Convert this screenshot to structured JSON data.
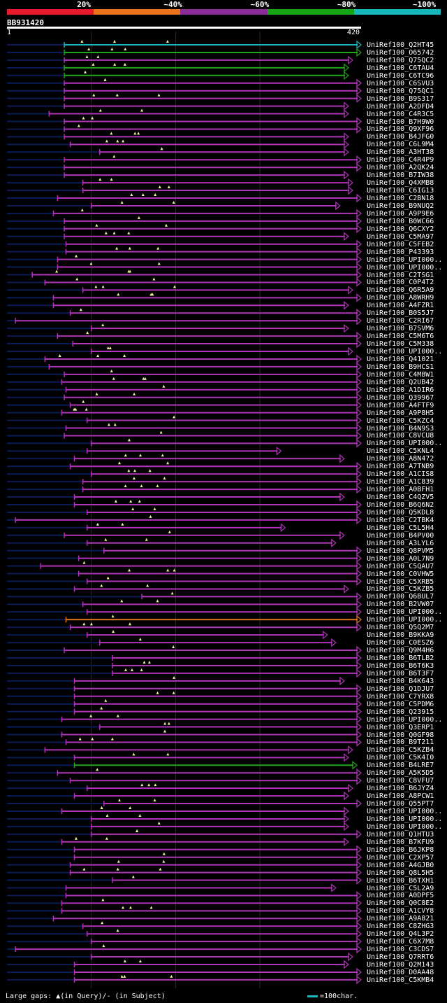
{
  "legend": {
    "labels": [
      "20%",
      "~40%",
      "~60%",
      "~80%",
      "~100%"
    ],
    "colors": [
      "#e8192a",
      "#e8731a",
      "#8d2a9a",
      "#17a417",
      "#16b8bd"
    ]
  },
  "query": {
    "id": "BB931420",
    "start_label": "1",
    "end_label": "420",
    "length": 420
  },
  "colors": {
    "magenta": "#b135b8",
    "green": "#22a51d",
    "cyan": "#16b8bd",
    "orange": "#e07820",
    "navy": "#0c1a55",
    "gap": "#f6f0a0"
  },
  "hits": [
    {
      "label": "UniRef100_Q2HT45",
      "color": "cyan",
      "start": 68,
      "end": 420
    },
    {
      "label": "UniRef100_O65742",
      "color": "green",
      "start": 68,
      "end": 420
    },
    {
      "label": "UniRef100_Q75QC2",
      "color": "magenta",
      "start": 68,
      "end": 410
    },
    {
      "label": "UniRef100_C6TAU4",
      "color": "green",
      "start": 68,
      "end": 405
    },
    {
      "label": "UniRef100_C6TC96",
      "color": "green",
      "start": 68,
      "end": 405
    },
    {
      "label": "UniRef100_C6SVU3",
      "color": "magenta",
      "start": 68,
      "end": 420
    },
    {
      "label": "UniRef100_Q75QC1",
      "color": "magenta",
      "start": 68,
      "end": 420
    },
    {
      "label": "UniRef100_B9S317",
      "color": "magenta",
      "start": 68,
      "end": 420
    },
    {
      "label": "UniRef100_A2DFD4",
      "color": "magenta",
      "start": 68,
      "end": 405
    },
    {
      "label": "UniRef100_C4R3C5",
      "color": "magenta",
      "start": 50,
      "end": 405
    },
    {
      "label": "UniRef100_B7H9W0",
      "color": "magenta",
      "start": 68,
      "end": 420
    },
    {
      "label": "UniRef100_Q9XF96",
      "color": "magenta",
      "start": 68,
      "end": 420
    },
    {
      "label": "UniRef100_B4JFG0",
      "color": "magenta",
      "start": 68,
      "end": 405
    },
    {
      "label": "UniRef100_C6L9M4",
      "color": "magenta",
      "start": 75,
      "end": 405
    },
    {
      "label": "UniRef100_A3HT38",
      "color": "magenta",
      "start": 110,
      "end": 405
    },
    {
      "label": "UniRef100_C4R4P9",
      "color": "magenta",
      "start": 68,
      "end": 420
    },
    {
      "label": "UniRef100_A2QK24",
      "color": "magenta",
      "start": 68,
      "end": 420
    },
    {
      "label": "UniRef100_B7IW38",
      "color": "magenta",
      "start": 68,
      "end": 405
    },
    {
      "label": "UniRef100_Q4XMB8",
      "color": "magenta",
      "start": 90,
      "end": 410
    },
    {
      "label": "UniRef100_C6IG13",
      "color": "magenta",
      "start": 90,
      "end": 410
    },
    {
      "label": "UniRef100_C2BN18",
      "color": "magenta",
      "start": 60,
      "end": 420
    },
    {
      "label": "UniRef100_B9NUQ2",
      "color": "magenta",
      "start": 100,
      "end": 395
    },
    {
      "label": "UniRef100_A9P9E6",
      "color": "magenta",
      "start": 55,
      "end": 420
    },
    {
      "label": "UniRef100_B0WC66",
      "color": "magenta",
      "start": 68,
      "end": 420
    },
    {
      "label": "UniRef100_Q6CXY2",
      "color": "magenta",
      "start": 68,
      "end": 420
    },
    {
      "label": "UniRef100_C5MA97",
      "color": "magenta",
      "start": 68,
      "end": 405
    },
    {
      "label": "UniRef100_C5FEB2",
      "color": "magenta",
      "start": 70,
      "end": 420
    },
    {
      "label": "UniRef100_P43393",
      "color": "magenta",
      "start": 70,
      "end": 420
    },
    {
      "label": "UniRef100_UPI000..",
      "color": "magenta",
      "start": 60,
      "end": 420
    },
    {
      "label": "UniRef100_UPI000..",
      "color": "magenta",
      "start": 60,
      "end": 420
    },
    {
      "label": "UniRef100_C2TSG1",
      "color": "magenta",
      "start": 30,
      "end": 420
    },
    {
      "label": "UniRef100_C0P4T2",
      "color": "magenta",
      "start": 45,
      "end": 420
    },
    {
      "label": "UniRef100_Q6R5A9",
      "color": "magenta",
      "start": 90,
      "end": 410
    },
    {
      "label": "UniRef100_A8WRH9",
      "color": "magenta",
      "start": 55,
      "end": 420
    },
    {
      "label": "UniRef100_A4FZR1",
      "color": "magenta",
      "start": 55,
      "end": 405
    },
    {
      "label": "UniRef100_B0S5J7",
      "color": "magenta",
      "start": 75,
      "end": 420
    },
    {
      "label": "UniRef100_C2RI67",
      "color": "magenta",
      "start": 10,
      "end": 420
    },
    {
      "label": "UniRef100_B7SVM6",
      "color": "magenta",
      "start": 100,
      "end": 405
    },
    {
      "label": "UniRef100_C5M6T6",
      "color": "magenta",
      "start": 60,
      "end": 420
    },
    {
      "label": "UniRef100_C5M338",
      "color": "magenta",
      "start": 78,
      "end": 420
    },
    {
      "label": "UniRef100_UPI000..",
      "color": "magenta",
      "start": 100,
      "end": 410
    },
    {
      "label": "UniRef100_Q41021",
      "color": "magenta",
      "start": 45,
      "end": 420
    },
    {
      "label": "UniRef100_B9HCS1",
      "color": "magenta",
      "start": 50,
      "end": 420
    },
    {
      "label": "UniRef100_C4M8W1",
      "color": "magenta",
      "start": 68,
      "end": 420
    },
    {
      "label": "UniRef100_Q2UB42",
      "color": "magenta",
      "start": 65,
      "end": 420
    },
    {
      "label": "UniRef100_A1DIR6",
      "color": "magenta",
      "start": 70,
      "end": 420
    },
    {
      "label": "UniRef100_Q39967",
      "color": "magenta",
      "start": 68,
      "end": 420
    },
    {
      "label": "UniRef100_A4FTF9",
      "color": "magenta",
      "start": 75,
      "end": 420
    },
    {
      "label": "UniRef100_A9P8H5",
      "color": "magenta",
      "start": 65,
      "end": 420
    },
    {
      "label": "UniRef100_C5KZC4",
      "color": "magenta",
      "start": 95,
      "end": 420
    },
    {
      "label": "UniRef100_B4N9S3",
      "color": "magenta",
      "start": 70,
      "end": 420
    },
    {
      "label": "UniRef100_C8VCU8",
      "color": "magenta",
      "start": 68,
      "end": 420
    },
    {
      "label": "UniRef100_UPI000..",
      "color": "magenta",
      "start": 100,
      "end": 420
    },
    {
      "label": "UniRef100_C5KNL4",
      "color": "magenta",
      "start": 95,
      "end": 325
    },
    {
      "label": "UniRef100_A8N472",
      "color": "magenta",
      "start": 80,
      "end": 400
    },
    {
      "label": "UniRef100_A7TNB9",
      "color": "magenta",
      "start": 75,
      "end": 420
    },
    {
      "label": "UniRef100_A1CIS8",
      "color": "magenta",
      "start": 100,
      "end": 420
    },
    {
      "label": "UniRef100_A1C839",
      "color": "magenta",
      "start": 90,
      "end": 420
    },
    {
      "label": "UniRef100_A0BFH1",
      "color": "magenta",
      "start": 90,
      "end": 420
    },
    {
      "label": "UniRef100_C4QZV5",
      "color": "magenta",
      "start": 80,
      "end": 400
    },
    {
      "label": "UniRef100_B6Q6N2",
      "color": "magenta",
      "start": 80,
      "end": 420
    },
    {
      "label": "UniRef100_Q5KDL8",
      "color": "magenta",
      "start": 95,
      "end": 420
    },
    {
      "label": "UniRef100_C2TBK4",
      "color": "magenta",
      "start": 10,
      "end": 420
    },
    {
      "label": "UniRef100_C5L5H4",
      "color": "magenta",
      "start": 95,
      "end": 330
    },
    {
      "label": "UniRef100_B4PV00",
      "color": "magenta",
      "start": 68,
      "end": 400
    },
    {
      "label": "UniRef100_A3LYL6",
      "color": "magenta",
      "start": 95,
      "end": 390
    },
    {
      "label": "UniRef100_Q8PVM5",
      "color": "magenta",
      "start": 115,
      "end": 420
    },
    {
      "label": "UniRef100_A0L7N9",
      "color": "magenta",
      "start": 85,
      "end": 420
    },
    {
      "label": "UniRef100_C5QAU7",
      "color": "magenta",
      "start": 40,
      "end": 420
    },
    {
      "label": "UniRef100_C0VHW5",
      "color": "magenta",
      "start": 85,
      "end": 420
    },
    {
      "label": "UniRef100_C5XRB5",
      "color": "magenta",
      "start": 95,
      "end": 420
    },
    {
      "label": "UniRef100_C5KZB5",
      "color": "magenta",
      "start": 80,
      "end": 405
    },
    {
      "label": "UniRef100_Q6BUL7",
      "color": "magenta",
      "start": 160,
      "end": 420
    },
    {
      "label": "UniRef100_B2VW07",
      "color": "magenta",
      "start": 90,
      "end": 420
    },
    {
      "label": "UniRef100_UPI000..",
      "color": "magenta",
      "start": 95,
      "end": 420
    },
    {
      "label": "UniRef100_UPI000..",
      "color": "orange",
      "start": 70,
      "end": 420
    },
    {
      "label": "UniRef100_Q5Q2M7",
      "color": "magenta",
      "start": 75,
      "end": 420
    },
    {
      "label": "UniRef100_B9KKA9",
      "color": "magenta",
      "start": 95,
      "end": 380
    },
    {
      "label": "UniRef100_C0ESZ6",
      "color": "magenta",
      "start": 110,
      "end": 390
    },
    {
      "label": "UniRef100_Q9M4H6",
      "color": "magenta",
      "start": 68,
      "end": 420
    },
    {
      "label": "UniRef100_B6TLB2",
      "color": "magenta",
      "start": 125,
      "end": 420
    },
    {
      "label": "UniRef100_B6T6K3",
      "color": "magenta",
      "start": 125,
      "end": 420
    },
    {
      "label": "UniRef100_B6T3F7",
      "color": "magenta",
      "start": 125,
      "end": 420
    },
    {
      "label": "UniRef100_B4K643",
      "color": "magenta",
      "start": 80,
      "end": 400
    },
    {
      "label": "UniRef100_Q1DJU7",
      "color": "magenta",
      "start": 80,
      "end": 420
    },
    {
      "label": "UniRef100_C7YRX8",
      "color": "magenta",
      "start": 80,
      "end": 420
    },
    {
      "label": "UniRef100_C5PDM6",
      "color": "magenta",
      "start": 80,
      "end": 420
    },
    {
      "label": "UniRef100_Q23915",
      "color": "magenta",
      "start": 80,
      "end": 420
    },
    {
      "label": "UniRef100_UPI000..",
      "color": "magenta",
      "start": 65,
      "end": 420
    },
    {
      "label": "UniRef100_Q3ERP1",
      "color": "magenta",
      "start": 110,
      "end": 420
    },
    {
      "label": "UniRef100_Q0GF98",
      "color": "magenta",
      "start": 65,
      "end": 420
    },
    {
      "label": "UniRef100_B9T211",
      "color": "magenta",
      "start": 70,
      "end": 420
    },
    {
      "label": "UniRef100_C5KZB4",
      "color": "magenta",
      "start": 45,
      "end": 410
    },
    {
      "label": "UniRef100_C5K4I0",
      "color": "magenta",
      "start": 80,
      "end": 405
    },
    {
      "label": "UniRef100_B4LRE7",
      "color": "green",
      "start": 80,
      "end": 415
    },
    {
      "label": "UniRef100_A5K5D5",
      "color": "magenta",
      "start": 60,
      "end": 420
    },
    {
      "label": "UniRef100_C8VFU7",
      "color": "magenta",
      "start": 75,
      "end": 420
    },
    {
      "label": "UniRef100_B6JYZ4",
      "color": "magenta",
      "start": 95,
      "end": 410
    },
    {
      "label": "UniRef100_A8PCW1",
      "color": "magenta",
      "start": 80,
      "end": 405
    },
    {
      "label": "UniRef100_Q55PT7",
      "color": "magenta",
      "start": 115,
      "end": 420
    },
    {
      "label": "UniRef100_UPI000..",
      "color": "magenta",
      "start": 65,
      "end": 405
    },
    {
      "label": "UniRef100_UPI000..",
      "color": "magenta",
      "start": 100,
      "end": 405
    },
    {
      "label": "UniRef100_UPI000..",
      "color": "magenta",
      "start": 100,
      "end": 405
    },
    {
      "label": "UniRef100_Q1HTU3",
      "color": "magenta",
      "start": 100,
      "end": 420
    },
    {
      "label": "UniRef100_B7KFU9",
      "color": "magenta",
      "start": 65,
      "end": 405
    },
    {
      "label": "UniRef100_B6JKP8",
      "color": "magenta",
      "start": 80,
      "end": 420
    },
    {
      "label": "UniRef100_C2XP57",
      "color": "magenta",
      "start": 80,
      "end": 420
    },
    {
      "label": "UniRef100_A4GJB0",
      "color": "magenta",
      "start": 75,
      "end": 420
    },
    {
      "label": "UniRef100_Q8L5H5",
      "color": "magenta",
      "start": 75,
      "end": 420
    },
    {
      "label": "UniRef100_B6TXH1",
      "color": "magenta",
      "start": 125,
      "end": 420
    },
    {
      "label": "UniRef100_C5L2A9",
      "color": "magenta",
      "start": 70,
      "end": 390
    },
    {
      "label": "UniRef100_A0DPF5",
      "color": "magenta",
      "start": 70,
      "end": 420
    },
    {
      "label": "UniRef100_Q0C8E2",
      "color": "magenta",
      "start": 65,
      "end": 420
    },
    {
      "label": "UniRef100_A1CVY8",
      "color": "magenta",
      "start": 65,
      "end": 420
    },
    {
      "label": "UniRef100_A9A821",
      "color": "magenta",
      "start": 55,
      "end": 420
    },
    {
      "label": "UniRef100_C8ZHG3",
      "color": "magenta",
      "start": 90,
      "end": 420
    },
    {
      "label": "UniRef100_Q4L3P2",
      "color": "magenta",
      "start": 95,
      "end": 420
    },
    {
      "label": "UniRef100_C6X7M8",
      "color": "magenta",
      "start": 100,
      "end": 420
    },
    {
      "label": "UniRef100_C3CDS7",
      "color": "magenta",
      "start": 10,
      "end": 420
    },
    {
      "label": "UniRef100_Q7RRT6",
      "color": "magenta",
      "start": 100,
      "end": 410
    },
    {
      "label": "UniRef100_Q2M143",
      "color": "magenta",
      "start": 80,
      "end": 405
    },
    {
      "label": "UniRef100_D0AA48",
      "color": "magenta",
      "start": 80,
      "end": 420
    },
    {
      "label": "UniRef100_C5KMB4",
      "color": "magenta",
      "start": 80,
      "end": 420
    }
  ],
  "footer": {
    "gaps_note": "Large gaps: ▲(in Query)/- (in Subject)",
    "scale_note": "=100char."
  }
}
